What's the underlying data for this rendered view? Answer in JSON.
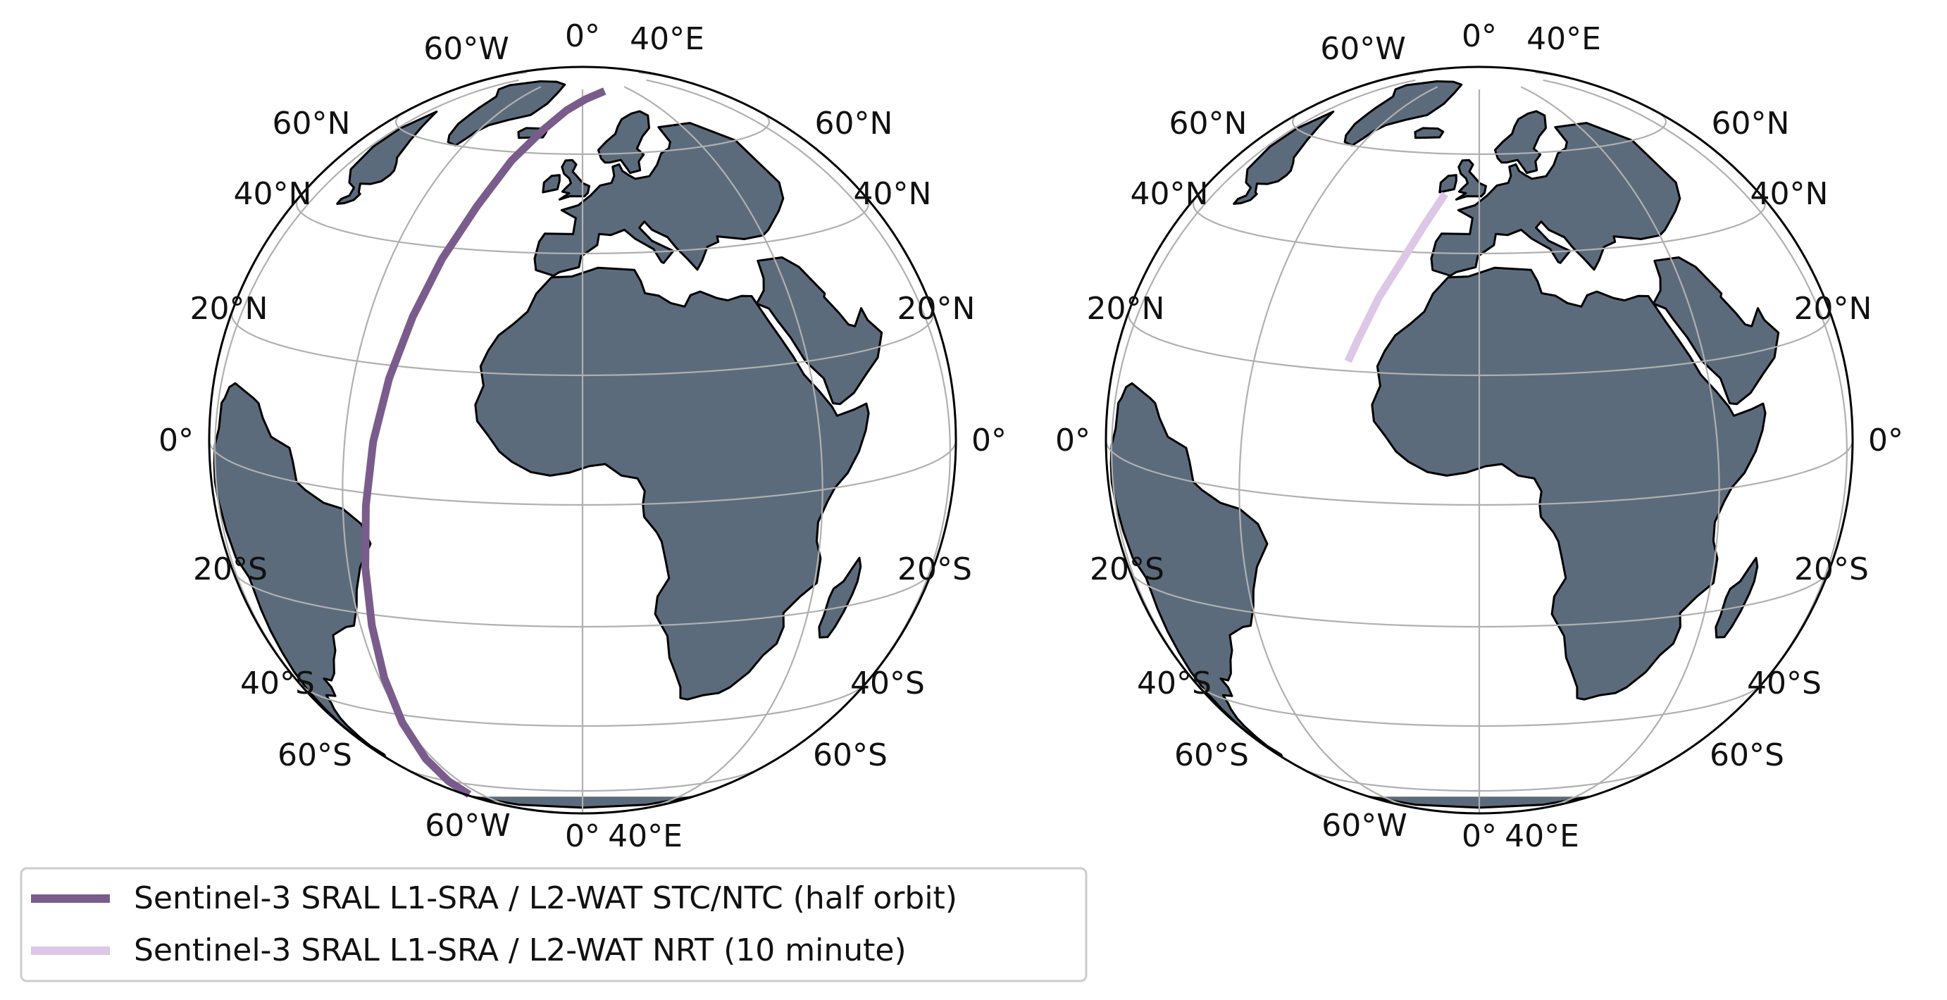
{
  "colors": {
    "land": "#5c6b7c",
    "ocean": "#ffffff",
    "coastline": "#000000",
    "gridline": "#b0b0b0",
    "globe_outline": "#000000",
    "track_half_orbit": "#7a5c8c",
    "track_nrt": "#dcc7e6"
  },
  "globes": [
    {
      "id": "left",
      "labels": {
        "top_lon": [
          "60°W",
          "0°",
          "40°E"
        ],
        "bottom_lon": [
          "60°W",
          "0°",
          "40°E"
        ],
        "left_lat": [
          "60°N",
          "40°N",
          "20°N",
          "0°",
          "20°S",
          "40°S",
          "60°S"
        ],
        "right_lat": [
          "60°N",
          "40°N",
          "20°N",
          "0°",
          "20°S",
          "40°S",
          "60°S"
        ]
      },
      "track": "half_orbit"
    },
    {
      "id": "right",
      "labels": {
        "top_lon": [
          "60°W",
          "0°",
          "40°E"
        ],
        "bottom_lon": [
          "60°W",
          "0°",
          "40°E"
        ],
        "left_lat": [
          "60°N",
          "40°N",
          "20°N",
          "0°",
          "20°S",
          "40°S",
          "60°S"
        ],
        "right_lat": [
          "60°N",
          "40°N",
          "20°N",
          "0°",
          "20°S",
          "40°S",
          "60°S"
        ]
      },
      "track": "nrt"
    }
  ],
  "legend": {
    "entries": [
      {
        "label": "Sentinel-3 SRAL L1-SRA / L2-WAT STC/NTC (half orbit)",
        "color_key": "track_half_orbit"
      },
      {
        "label": "Sentinel-3 SRAL L1-SRA / L2-WAT NRT (10 minute)",
        "color_key": "track_nrt"
      }
    ]
  }
}
